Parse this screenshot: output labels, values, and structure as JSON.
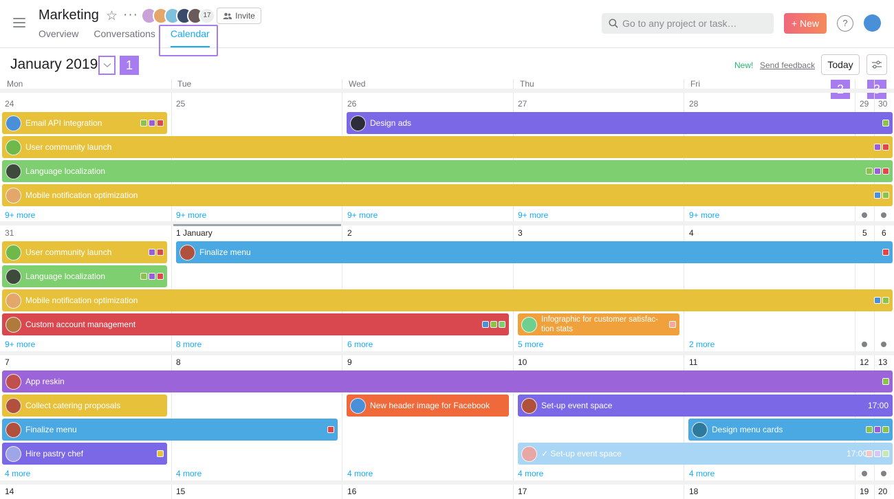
{
  "project": {
    "title": "Marketing",
    "member_count": "17",
    "invite_label": "Invite"
  },
  "tabs": [
    {
      "label": "Overview"
    },
    {
      "label": "Conversations"
    },
    {
      "label": "Calendar",
      "active": true
    }
  ],
  "search": {
    "placeholder": "Go to any project or task…"
  },
  "header": {
    "new_label": "New",
    "help_label": "?"
  },
  "calendar": {
    "month_title": "January 2019",
    "new_badge": "New!",
    "feedback_label": "Send feedback",
    "today_label": "Today",
    "markers": [
      "1",
      "2",
      "3"
    ],
    "weekdays": [
      "Mon",
      "Tue",
      "Wed",
      "Thu",
      "Fri"
    ],
    "weeks": [
      {
        "days": [
          "24",
          "25",
          "26",
          "27",
          "28",
          "29",
          "30"
        ],
        "more": [
          "9+ more",
          "9+ more",
          "9+ more",
          "9+ more",
          "9+ more"
        ]
      },
      {
        "days": [
          "31",
          "1 January",
          "2",
          "3",
          "4",
          "5",
          "6"
        ],
        "more": [
          "9+ more",
          "8 more",
          "6 more",
          "5 more",
          "2 more"
        ]
      },
      {
        "days": [
          "7",
          "8",
          "9",
          "10",
          "11",
          "12",
          "13"
        ],
        "more": [
          "4 more",
          "4 more",
          "4 more",
          "4 more",
          "4 more"
        ]
      },
      {
        "days": [
          "14",
          "15",
          "16",
          "17",
          "18",
          "19",
          "20"
        ]
      }
    ],
    "events": [
      {
        "title": "Email API integration",
        "color": "#e8c13b",
        "avatar": "#4a90d9",
        "tags": [
          "#8bc34a",
          "#9c5bd8",
          "#e0474c"
        ]
      },
      {
        "title": "Design ads",
        "color": "#7b68e6",
        "avatar": "#2d2d3a",
        "tags": [
          "#8bc34a"
        ]
      },
      {
        "title": "User community launch",
        "color": "#e8c13b",
        "avatar": "#6fb84a",
        "tags": [
          "#9c5bd8",
          "#e0474c"
        ]
      },
      {
        "title": "Language localization",
        "color": "#7ecf6f",
        "avatar": "#3e4a3c",
        "tags": [
          "#8bc34a",
          "#9c5bd8",
          "#e0474c"
        ]
      },
      {
        "title": "Mobile notification optimization",
        "color": "#e8c13b",
        "avatar": "#e4a76a",
        "tags": [
          "#4a90d9",
          "#8bc34a"
        ]
      },
      {
        "title": "User community launch",
        "color": "#e8c13b",
        "avatar": "#6fb84a",
        "tags": [
          "#9c5bd8",
          "#e0474c"
        ]
      },
      {
        "title": "Finalize menu",
        "color": "#4aa8e2",
        "avatar": "#b0513d",
        "tags": [
          "#e0474c"
        ]
      },
      {
        "title": "Language localization",
        "color": "#7ecf6f",
        "avatar": "#3e4a3c",
        "tags": [
          "#8bc34a",
          "#9c5bd8",
          "#e0474c"
        ]
      },
      {
        "title": "Mobile notification optimization",
        "color": "#e8c13b",
        "avatar": "#e4a76a",
        "tags": [
          "#4a90d9",
          "#8bc34a"
        ]
      },
      {
        "title": "Custom account management",
        "color": "#d9474f",
        "avatar": "#b07a3d",
        "tags": [
          "#4a90d9",
          "#8bc34a",
          "#7ecf6f"
        ]
      },
      {
        "title": "Infographic for customer satisfac-tion stats",
        "color": "#f0a13b",
        "avatar": "#6fcf8f",
        "tags": [
          "#f4a7a0"
        ]
      },
      {
        "title": "App reskin",
        "color": "#9b65d9",
        "avatar": "#c0504d",
        "tags": [
          "#8bc34a"
        ]
      },
      {
        "title": "Collect catering proposals",
        "color": "#e8c13b",
        "avatar": "#b0513d",
        "tags": []
      },
      {
        "title": "New header image for Facebook",
        "color": "#f0693a",
        "avatar": "#4a90d9",
        "tags": []
      },
      {
        "title": "Set-up event space",
        "color": "#7b68e6",
        "avatar": "#b0513d",
        "time": "17:00",
        "tags": []
      },
      {
        "title": "Finalize menu",
        "color": "#4aa8e2",
        "avatar": "#b0513d",
        "tags": [
          "#e0474c"
        ]
      },
      {
        "title": "Design menu cards",
        "color": "#4aa8e2",
        "avatar": "#2e7a9c",
        "tags": [
          "#8bc34a",
          "#9c5bd8",
          "#8bc34a"
        ]
      },
      {
        "title": "Hire pastry chef",
        "color": "#7b68e6",
        "avatar": "#9fa6e8",
        "tags": [
          "#e8c13b"
        ]
      },
      {
        "title": "✓ Set-up event space",
        "color": "#a9d6f4",
        "avatar": "#e8a7a7",
        "time": "17:00",
        "tags": [
          "#f4c7c7",
          "#d7c7f4",
          "#c7e8b0"
        ]
      }
    ]
  }
}
